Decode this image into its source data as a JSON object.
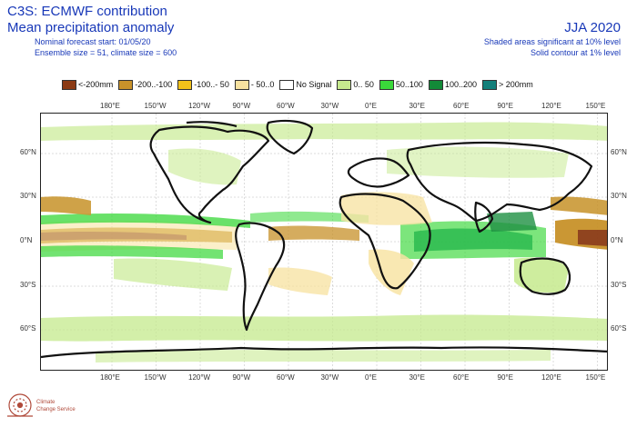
{
  "header": {
    "line1": "C3S: ECMWF contribution",
    "line2": "Mean precipitation anomaly",
    "line3": "Nominal forecast start: 01/05/20",
    "line4": "Ensemble size = 51, climate size = 600",
    "season": "JJA 2020",
    "note1": "Shaded areas significant at 10% level",
    "note2": "Solid contour at 1% level"
  },
  "legend": [
    {
      "label": "<-200mm",
      "color": "#8b3a14"
    },
    {
      "label": "-200..-100",
      "color": "#c8922a"
    },
    {
      "label": "-100..- 50",
      "color": "#f2c21a"
    },
    {
      "label": "- 50..0",
      "color": "#f7e2a0"
    },
    {
      "label": "No Signal",
      "color": "#ffffff"
    },
    {
      "label": "0.. 50",
      "color": "#c6ea8e"
    },
    {
      "label": "50..100",
      "color": "#3ad83a"
    },
    {
      "label": "100..200",
      "color": "#138a38"
    },
    {
      "label": "> 200mm",
      "color": "#137f7a"
    }
  ],
  "axes": {
    "top_lon": [
      "180°E",
      "150°W",
      "120°W",
      "90°W",
      "60°W",
      "30°W",
      "0°E",
      "30°E",
      "60°E",
      "90°E",
      "120°E",
      "150°E"
    ],
    "bottom_lon": [
      "180°E",
      "150°W",
      "120°W",
      "90°W",
      "60°W",
      "30°W",
      "0°E",
      "30°E",
      "60°E",
      "90°E",
      "120°E",
      "150°E"
    ],
    "left_lat": [
      "60°N",
      "30°N",
      "0°N",
      "30°S",
      "60°S"
    ],
    "right_lat": [
      "60°N",
      "30°N",
      "0°N",
      "30°S",
      "60°S"
    ]
  },
  "logo": {
    "line1": "Climate",
    "line2": "Change Service"
  }
}
